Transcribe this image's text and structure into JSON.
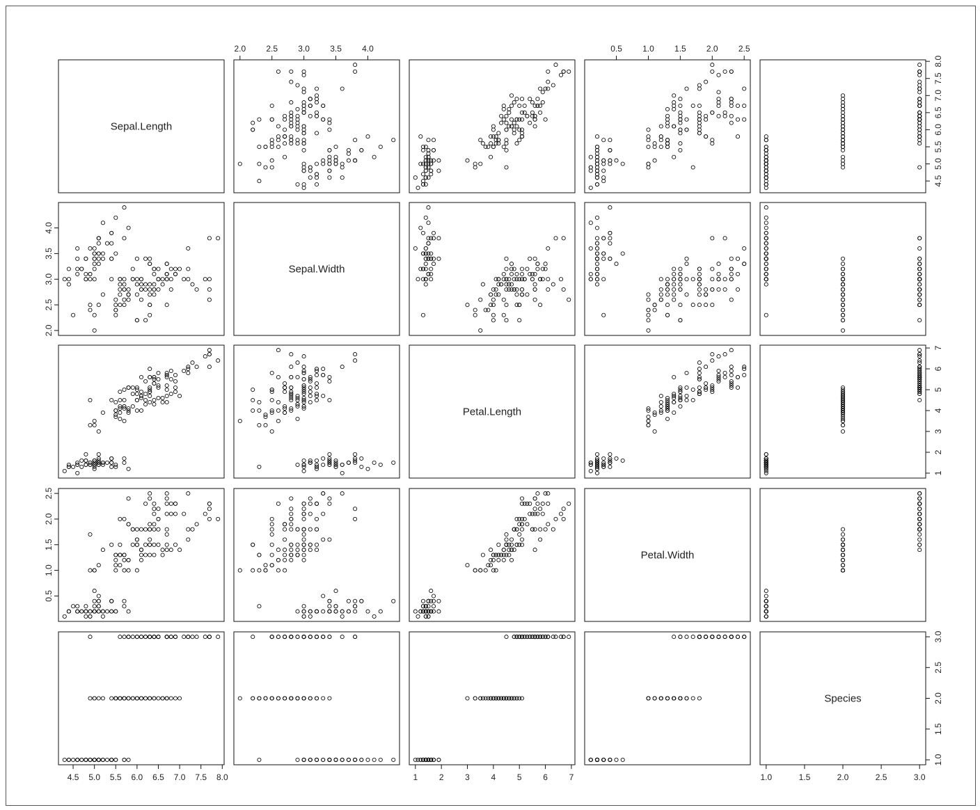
{
  "chart_data": {
    "type": "scatter",
    "variables": [
      "Sepal.Length",
      "Sepal.Width",
      "Petal.Length",
      "Petal.Width",
      "Species"
    ],
    "ranges": [
      [
        4.3,
        7.9
      ],
      [
        2.0,
        4.4
      ],
      [
        1.0,
        6.9
      ],
      [
        0.1,
        2.5
      ],
      [
        1.0,
        3.0
      ]
    ],
    "ticks": [
      [
        "4.5",
        "5.0",
        "5.5",
        "6.0",
        "6.5",
        "7.0",
        "7.5",
        "8.0"
      ],
      [
        "2.0",
        "2.5",
        "3.0",
        "3.5",
        "4.0"
      ],
      [
        "1",
        "2",
        "3",
        "4",
        "5",
        "6",
        "7"
      ],
      [
        "0.5",
        "1.0",
        "1.5",
        "2.0",
        "2.5"
      ],
      [
        "1.0",
        "1.5",
        "2.0",
        "2.5",
        "3.0"
      ]
    ],
    "rows": [
      [
        5.1,
        3.5,
        1.4,
        0.2,
        1
      ],
      [
        4.9,
        3.0,
        1.4,
        0.2,
        1
      ],
      [
        4.7,
        3.2,
        1.3,
        0.2,
        1
      ],
      [
        4.6,
        3.1,
        1.5,
        0.2,
        1
      ],
      [
        5.0,
        3.6,
        1.4,
        0.2,
        1
      ],
      [
        5.4,
        3.9,
        1.7,
        0.4,
        1
      ],
      [
        4.6,
        3.4,
        1.4,
        0.3,
        1
      ],
      [
        5.0,
        3.4,
        1.5,
        0.2,
        1
      ],
      [
        4.4,
        2.9,
        1.4,
        0.2,
        1
      ],
      [
        4.9,
        3.1,
        1.5,
        0.1,
        1
      ],
      [
        5.4,
        3.7,
        1.5,
        0.2,
        1
      ],
      [
        4.8,
        3.4,
        1.6,
        0.2,
        1
      ],
      [
        4.8,
        3.0,
        1.4,
        0.1,
        1
      ],
      [
        4.3,
        3.0,
        1.1,
        0.1,
        1
      ],
      [
        5.8,
        4.0,
        1.2,
        0.2,
        1
      ],
      [
        5.7,
        4.4,
        1.5,
        0.4,
        1
      ],
      [
        5.4,
        3.9,
        1.3,
        0.4,
        1
      ],
      [
        5.1,
        3.5,
        1.4,
        0.3,
        1
      ],
      [
        5.7,
        3.8,
        1.7,
        0.3,
        1
      ],
      [
        5.1,
        3.8,
        1.5,
        0.3,
        1
      ],
      [
        5.4,
        3.4,
        1.7,
        0.2,
        1
      ],
      [
        5.1,
        3.7,
        1.5,
        0.4,
        1
      ],
      [
        4.6,
        3.6,
        1.0,
        0.2,
        1
      ],
      [
        5.1,
        3.3,
        1.7,
        0.5,
        1
      ],
      [
        4.8,
        3.4,
        1.9,
        0.2,
        1
      ],
      [
        5.0,
        3.0,
        1.6,
        0.2,
        1
      ],
      [
        5.0,
        3.4,
        1.6,
        0.4,
        1
      ],
      [
        5.2,
        3.5,
        1.5,
        0.2,
        1
      ],
      [
        5.2,
        3.4,
        1.4,
        0.2,
        1
      ],
      [
        4.7,
        3.2,
        1.6,
        0.2,
        1
      ],
      [
        4.8,
        3.1,
        1.6,
        0.2,
        1
      ],
      [
        5.4,
        3.4,
        1.5,
        0.4,
        1
      ],
      [
        5.2,
        4.1,
        1.5,
        0.1,
        1
      ],
      [
        5.5,
        4.2,
        1.4,
        0.2,
        1
      ],
      [
        4.9,
        3.1,
        1.5,
        0.2,
        1
      ],
      [
        5.0,
        3.2,
        1.2,
        0.2,
        1
      ],
      [
        5.5,
        3.5,
        1.3,
        0.2,
        1
      ],
      [
        4.9,
        3.6,
        1.4,
        0.1,
        1
      ],
      [
        4.4,
        3.0,
        1.3,
        0.2,
        1
      ],
      [
        5.1,
        3.4,
        1.5,
        0.2,
        1
      ],
      [
        5.0,
        3.5,
        1.3,
        0.3,
        1
      ],
      [
        4.5,
        2.3,
        1.3,
        0.3,
        1
      ],
      [
        4.4,
        3.2,
        1.3,
        0.2,
        1
      ],
      [
        5.0,
        3.5,
        1.6,
        0.6,
        1
      ],
      [
        5.1,
        3.8,
        1.9,
        0.4,
        1
      ],
      [
        4.8,
        3.0,
        1.4,
        0.3,
        1
      ],
      [
        5.1,
        3.8,
        1.6,
        0.2,
        1
      ],
      [
        4.6,
        3.2,
        1.4,
        0.2,
        1
      ],
      [
        5.3,
        3.7,
        1.5,
        0.2,
        1
      ],
      [
        5.0,
        3.3,
        1.4,
        0.2,
        1
      ],
      [
        7.0,
        3.2,
        4.7,
        1.4,
        2
      ],
      [
        6.4,
        3.2,
        4.5,
        1.5,
        2
      ],
      [
        6.9,
        3.1,
        4.9,
        1.5,
        2
      ],
      [
        5.5,
        2.3,
        4.0,
        1.3,
        2
      ],
      [
        6.5,
        2.8,
        4.6,
        1.5,
        2
      ],
      [
        5.7,
        2.8,
        4.5,
        1.3,
        2
      ],
      [
        6.3,
        3.3,
        4.7,
        1.6,
        2
      ],
      [
        4.9,
        2.4,
        3.3,
        1.0,
        2
      ],
      [
        6.6,
        2.9,
        4.6,
        1.3,
        2
      ],
      [
        5.2,
        2.7,
        3.9,
        1.4,
        2
      ],
      [
        5.0,
        2.0,
        3.5,
        1.0,
        2
      ],
      [
        5.9,
        3.0,
        4.2,
        1.5,
        2
      ],
      [
        6.0,
        2.2,
        4.0,
        1.0,
        2
      ],
      [
        6.1,
        2.9,
        4.7,
        1.4,
        2
      ],
      [
        5.6,
        2.9,
        3.6,
        1.3,
        2
      ],
      [
        6.7,
        3.1,
        4.4,
        1.4,
        2
      ],
      [
        5.6,
        3.0,
        4.5,
        1.5,
        2
      ],
      [
        5.8,
        2.7,
        4.1,
        1.0,
        2
      ],
      [
        6.2,
        2.2,
        4.5,
        1.5,
        2
      ],
      [
        5.6,
        2.5,
        3.9,
        1.1,
        2
      ],
      [
        5.9,
        3.2,
        4.8,
        1.8,
        2
      ],
      [
        6.1,
        2.8,
        4.0,
        1.3,
        2
      ],
      [
        6.3,
        2.5,
        4.9,
        1.5,
        2
      ],
      [
        6.1,
        2.8,
        4.7,
        1.2,
        2
      ],
      [
        6.4,
        2.9,
        4.3,
        1.3,
        2
      ],
      [
        6.6,
        3.0,
        4.4,
        1.4,
        2
      ],
      [
        6.8,
        2.8,
        4.8,
        1.4,
        2
      ],
      [
        6.7,
        3.0,
        5.0,
        1.7,
        2
      ],
      [
        6.0,
        2.9,
        4.5,
        1.5,
        2
      ],
      [
        5.7,
        2.6,
        3.5,
        1.0,
        2
      ],
      [
        5.5,
        2.4,
        3.8,
        1.1,
        2
      ],
      [
        5.5,
        2.4,
        3.7,
        1.0,
        2
      ],
      [
        5.8,
        2.7,
        3.9,
        1.2,
        2
      ],
      [
        6.0,
        2.7,
        5.1,
        1.6,
        2
      ],
      [
        5.4,
        3.0,
        4.5,
        1.5,
        2
      ],
      [
        6.0,
        3.4,
        4.5,
        1.6,
        2
      ],
      [
        6.7,
        3.1,
        4.7,
        1.5,
        2
      ],
      [
        6.3,
        2.3,
        4.4,
        1.3,
        2
      ],
      [
        5.6,
        3.0,
        4.1,
        1.3,
        2
      ],
      [
        5.5,
        2.5,
        4.0,
        1.3,
        2
      ],
      [
        5.5,
        2.6,
        4.4,
        1.2,
        2
      ],
      [
        6.1,
        3.0,
        4.6,
        1.4,
        2
      ],
      [
        5.8,
        2.6,
        4.0,
        1.2,
        2
      ],
      [
        5.0,
        2.3,
        3.3,
        1.0,
        2
      ],
      [
        5.6,
        2.7,
        4.2,
        1.3,
        2
      ],
      [
        5.7,
        3.0,
        4.2,
        1.2,
        2
      ],
      [
        5.7,
        2.9,
        4.2,
        1.3,
        2
      ],
      [
        6.2,
        2.9,
        4.3,
        1.3,
        2
      ],
      [
        5.1,
        2.5,
        3.0,
        1.1,
        2
      ],
      [
        5.7,
        2.8,
        4.1,
        1.3,
        2
      ],
      [
        6.3,
        3.3,
        6.0,
        2.5,
        3
      ],
      [
        5.8,
        2.7,
        5.1,
        1.9,
        3
      ],
      [
        7.1,
        3.0,
        5.9,
        2.1,
        3
      ],
      [
        6.3,
        2.9,
        5.6,
        1.8,
        3
      ],
      [
        6.5,
        3.0,
        5.8,
        2.2,
        3
      ],
      [
        7.6,
        3.0,
        6.6,
        2.1,
        3
      ],
      [
        4.9,
        2.5,
        4.5,
        1.7,
        3
      ],
      [
        7.3,
        2.9,
        6.3,
        1.8,
        3
      ],
      [
        6.7,
        2.5,
        5.8,
        1.8,
        3
      ],
      [
        7.2,
        3.6,
        6.1,
        2.5,
        3
      ],
      [
        6.5,
        3.2,
        5.1,
        2.0,
        3
      ],
      [
        6.4,
        2.7,
        5.3,
        1.9,
        3
      ],
      [
        6.8,
        3.0,
        5.5,
        2.1,
        3
      ],
      [
        5.7,
        2.5,
        5.0,
        2.0,
        3
      ],
      [
        5.8,
        2.8,
        5.1,
        2.4,
        3
      ],
      [
        6.4,
        3.2,
        5.3,
        2.3,
        3
      ],
      [
        6.5,
        3.0,
        5.5,
        1.8,
        3
      ],
      [
        7.7,
        3.8,
        6.7,
        2.2,
        3
      ],
      [
        7.7,
        2.6,
        6.9,
        2.3,
        3
      ],
      [
        6.0,
        2.2,
        5.0,
        1.5,
        3
      ],
      [
        6.9,
        3.2,
        5.7,
        2.3,
        3
      ],
      [
        5.6,
        2.8,
        4.9,
        2.0,
        3
      ],
      [
        7.7,
        2.8,
        6.7,
        2.0,
        3
      ],
      [
        6.3,
        2.7,
        4.9,
        1.8,
        3
      ],
      [
        6.7,
        3.3,
        5.7,
        2.1,
        3
      ],
      [
        7.2,
        3.2,
        6.0,
        1.8,
        3
      ],
      [
        6.2,
        2.8,
        4.8,
        1.8,
        3
      ],
      [
        6.1,
        3.0,
        4.9,
        1.8,
        3
      ],
      [
        6.4,
        2.8,
        5.6,
        2.1,
        3
      ],
      [
        7.2,
        3.0,
        5.8,
        1.6,
        3
      ],
      [
        7.4,
        2.8,
        6.1,
        1.9,
        3
      ],
      [
        7.9,
        3.8,
        6.4,
        2.0,
        3
      ],
      [
        6.4,
        2.8,
        5.6,
        2.2,
        3
      ],
      [
        6.3,
        2.8,
        5.1,
        1.5,
        3
      ],
      [
        6.1,
        2.6,
        5.6,
        1.4,
        3
      ],
      [
        7.7,
        3.0,
        6.1,
        2.3,
        3
      ],
      [
        6.3,
        3.4,
        5.6,
        2.4,
        3
      ],
      [
        6.4,
        3.1,
        5.5,
        1.8,
        3
      ],
      [
        6.0,
        3.0,
        4.8,
        1.8,
        3
      ],
      [
        6.9,
        3.1,
        5.4,
        2.1,
        3
      ],
      [
        6.7,
        3.1,
        5.6,
        2.4,
        3
      ],
      [
        6.9,
        3.1,
        5.1,
        2.3,
        3
      ],
      [
        5.8,
        2.7,
        5.1,
        1.9,
        3
      ],
      [
        6.8,
        3.2,
        5.9,
        2.3,
        3
      ],
      [
        6.7,
        3.3,
        5.7,
        2.5,
        3
      ],
      [
        6.7,
        3.0,
        5.2,
        2.3,
        3
      ],
      [
        6.3,
        2.5,
        5.0,
        1.9,
        3
      ],
      [
        6.5,
        3.0,
        5.2,
        2.0,
        3
      ],
      [
        6.2,
        3.4,
        5.4,
        2.3,
        3
      ],
      [
        5.9,
        3.0,
        5.1,
        1.8,
        3
      ]
    ],
    "grid": false,
    "legend": "none",
    "marker": "open-circle",
    "colors": {
      "marker": "#111111",
      "frame": "#111111",
      "text": "#222222"
    }
  }
}
